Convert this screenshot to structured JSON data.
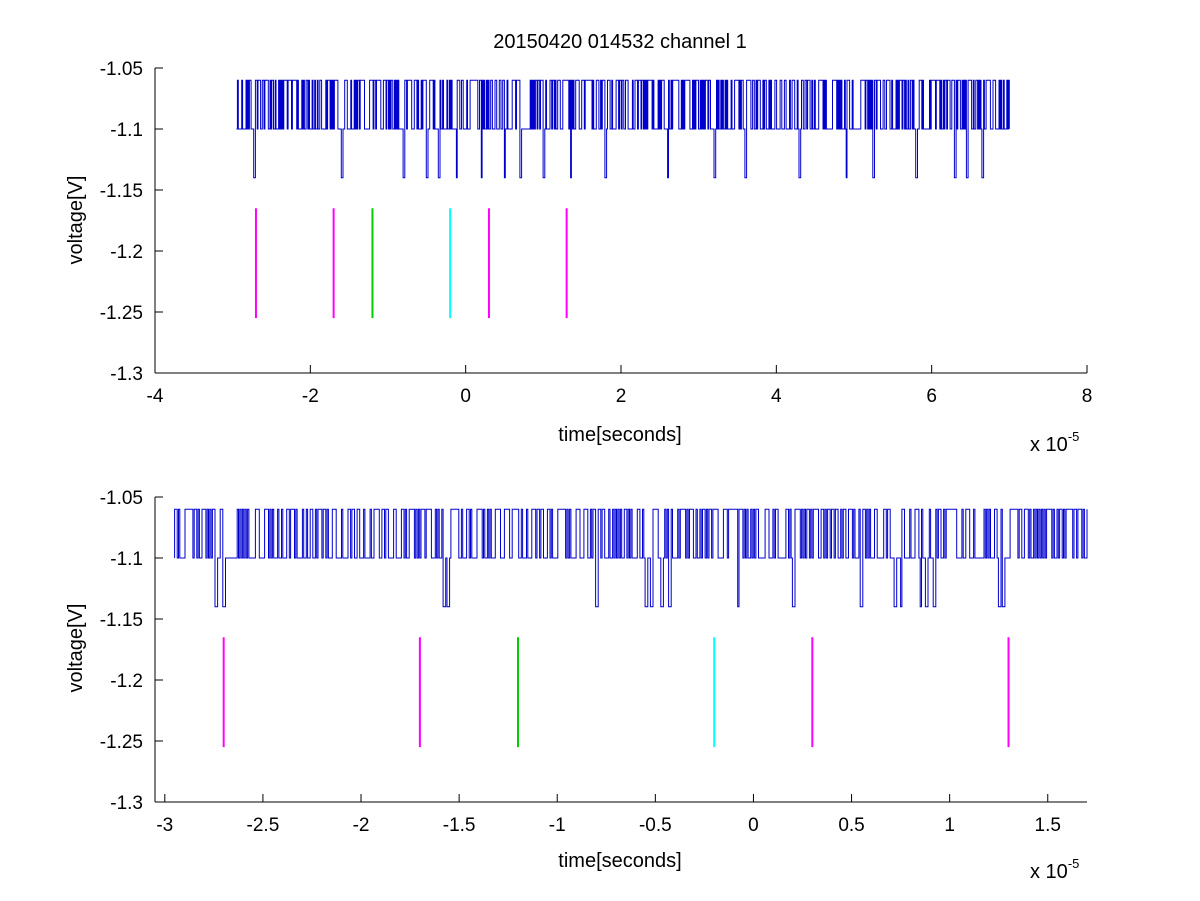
{
  "chart_data": [
    {
      "type": "line",
      "title": "20150420 014532 channel 1",
      "xlabel": "time[seconds]",
      "ylabel": "voltage[V]",
      "x_multiplier_base": "x 10",
      "x_multiplier_exponent": "-5",
      "xlim": [
        -4,
        8
      ],
      "ylim": [
        -1.3,
        -1.05
      ],
      "xticks": [
        -4,
        -2,
        0,
        2,
        4,
        6,
        8
      ],
      "xtick_labels": [
        "-4",
        "-2",
        "0",
        "2",
        "4",
        "6",
        "8"
      ],
      "yticks": [
        -1.05,
        -1.1,
        -1.15,
        -1.2,
        -1.25,
        -1.3
      ],
      "ytick_labels": [
        "-1.05",
        "-1.1",
        "-1.15",
        "-1.2",
        "-1.25",
        "-1.3"
      ],
      "grid": false,
      "series": [
        {
          "style": "digitized voltage trace",
          "color": "#0000cc",
          "x_range": [
            -2.95,
            7.0
          ],
          "levels": [
            -1.06,
            -1.1,
            -1.14
          ],
          "dip_times": [
            -2.72,
            -1.6,
            -0.8,
            -0.5,
            -0.35,
            -0.12,
            0.2,
            0.5,
            0.7,
            1.0,
            1.35,
            1.8,
            2.6,
            3.2,
            3.6,
            4.3,
            4.9,
            5.25,
            5.8,
            6.3,
            6.45,
            6.65
          ]
        }
      ],
      "markers": [
        {
          "x": -2.7,
          "y_range": [
            -1.255,
            -1.165
          ],
          "color": "#ff00ff"
        },
        {
          "x": -1.7,
          "y_range": [
            -1.255,
            -1.165
          ],
          "color": "#ff00ff"
        },
        {
          "x": -1.2,
          "y_range": [
            -1.255,
            -1.165
          ],
          "color": "#00cc00"
        },
        {
          "x": -0.2,
          "y_range": [
            -1.255,
            -1.165
          ],
          "color": "#00ffff"
        },
        {
          "x": 0.3,
          "y_range": [
            -1.255,
            -1.165
          ],
          "color": "#ff00ff"
        },
        {
          "x": 1.3,
          "y_range": [
            -1.255,
            -1.165
          ],
          "color": "#ff00ff"
        }
      ]
    },
    {
      "type": "line",
      "title": "",
      "xlabel": "time[seconds]",
      "ylabel": "voltage[V]",
      "x_multiplier_base": "x 10",
      "x_multiplier_exponent": "-5",
      "xlim": [
        -3.05,
        1.7
      ],
      "ylim": [
        -1.3,
        -1.05
      ],
      "xticks": [
        -3,
        -2.5,
        -2,
        -1.5,
        -1,
        -0.5,
        0,
        0.5,
        1,
        1.5
      ],
      "xtick_labels": [
        "-3",
        "-2.5",
        "-2",
        "-1.5",
        "-1",
        "-0.5",
        "0",
        "0.5",
        "1",
        "1.5"
      ],
      "yticks": [
        -1.05,
        -1.1,
        -1.15,
        -1.2,
        -1.25,
        -1.3
      ],
      "ytick_labels": [
        "-1.05",
        "-1.1",
        "-1.15",
        "-1.2",
        "-1.25",
        "-1.3"
      ],
      "grid": false,
      "series": [
        {
          "style": "digitized voltage trace",
          "color": "#0000cc",
          "x_range": [
            -2.95,
            1.7
          ],
          "levels": [
            -1.06,
            -1.1,
            -1.14
          ],
          "dip_times": [
            -2.74,
            -2.7,
            -1.58,
            -1.56,
            -0.8,
            -0.55,
            -0.52,
            -0.47,
            -0.43,
            -0.08,
            0.2,
            0.55,
            0.72,
            0.75,
            0.85,
            0.88,
            0.92,
            1.25,
            1.27
          ]
        }
      ],
      "markers": [
        {
          "x": -2.7,
          "y_range": [
            -1.255,
            -1.165
          ],
          "color": "#ff00ff"
        },
        {
          "x": -1.7,
          "y_range": [
            -1.255,
            -1.165
          ],
          "color": "#ff00ff"
        },
        {
          "x": -1.2,
          "y_range": [
            -1.255,
            -1.165
          ],
          "color": "#00cc00"
        },
        {
          "x": -0.2,
          "y_range": [
            -1.255,
            -1.165
          ],
          "color": "#00ffff"
        },
        {
          "x": 0.3,
          "y_range": [
            -1.255,
            -1.165
          ],
          "color": "#ff00ff"
        },
        {
          "x": 1.3,
          "y_range": [
            -1.255,
            -1.165
          ],
          "color": "#ff00ff"
        }
      ]
    }
  ]
}
